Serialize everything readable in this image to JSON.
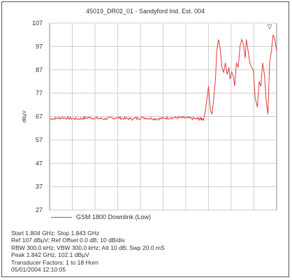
{
  "chart_data": {
    "type": "line",
    "title": "45019_DR02_01 - Sandyford Ind. Est. 004",
    "xlabel": "",
    "ylabel": "dBµV",
    "xlim": [
      1.804,
      1.843
    ],
    "ylim": [
      27,
      107
    ],
    "yticks": [
      107,
      97,
      87,
      77,
      67,
      57,
      47,
      37,
      27
    ],
    "grid": true,
    "legend_position": "bottom-left",
    "marker": "▽",
    "series": [
      {
        "name": "GSM 1800 Downlink (Low)",
        "color": "#e23b3b",
        "x": [
          1.804,
          1.8063,
          1.8086,
          1.8109,
          1.8132,
          1.8155,
          1.8178,
          1.8201,
          1.8224,
          1.8247,
          1.827,
          1.8293,
          1.8305,
          1.8308,
          1.8313,
          1.8316,
          1.8319,
          1.8322,
          1.8325,
          1.8327,
          1.833,
          1.8333,
          1.8336,
          1.8339,
          1.8342,
          1.8345,
          1.8348,
          1.835,
          1.8353,
          1.8356,
          1.8358,
          1.8361,
          1.8364,
          1.8367,
          1.837,
          1.8373,
          1.8376,
          1.8378,
          1.8381,
          1.8384,
          1.8387,
          1.839,
          1.8393,
          1.8397,
          1.84,
          1.8403,
          1.8406,
          1.8409,
          1.8412,
          1.8415,
          1.8418,
          1.8421,
          1.8424,
          1.8427,
          1.843
        ],
        "values": [
          66,
          66.5,
          66,
          66.5,
          66,
          66.5,
          66,
          66.5,
          66,
          66.5,
          66.5,
          66,
          66,
          70,
          80,
          70,
          68,
          75,
          83,
          95,
          100,
          96,
          88,
          86,
          90,
          85,
          88,
          83,
          86,
          84,
          80,
          90,
          88,
          97,
          100,
          98,
          92,
          100,
          95,
          90,
          88,
          87,
          75,
          71,
          82,
          80,
          90,
          85,
          74,
          68,
          90,
          95,
          102,
          100,
          95
        ]
      }
    ]
  },
  "info": {
    "line1": "Start 1.804 GHz; Stop 1.843 GHz",
    "line2": "Ref 107 dBµV; Ref Offset 0.0 dB; 10 dB/div",
    "line3": "RBW 300.0 kHz; VBW 300.0 kHz; Att 10 dB; Swp 20.0 mS",
    "line4": "Peak 1.842 GHz, 102.1 dBµV",
    "line5": "Transducer Factors: 1 to 18 Horn",
    "line6": "05/01/2004 12:10:05"
  }
}
